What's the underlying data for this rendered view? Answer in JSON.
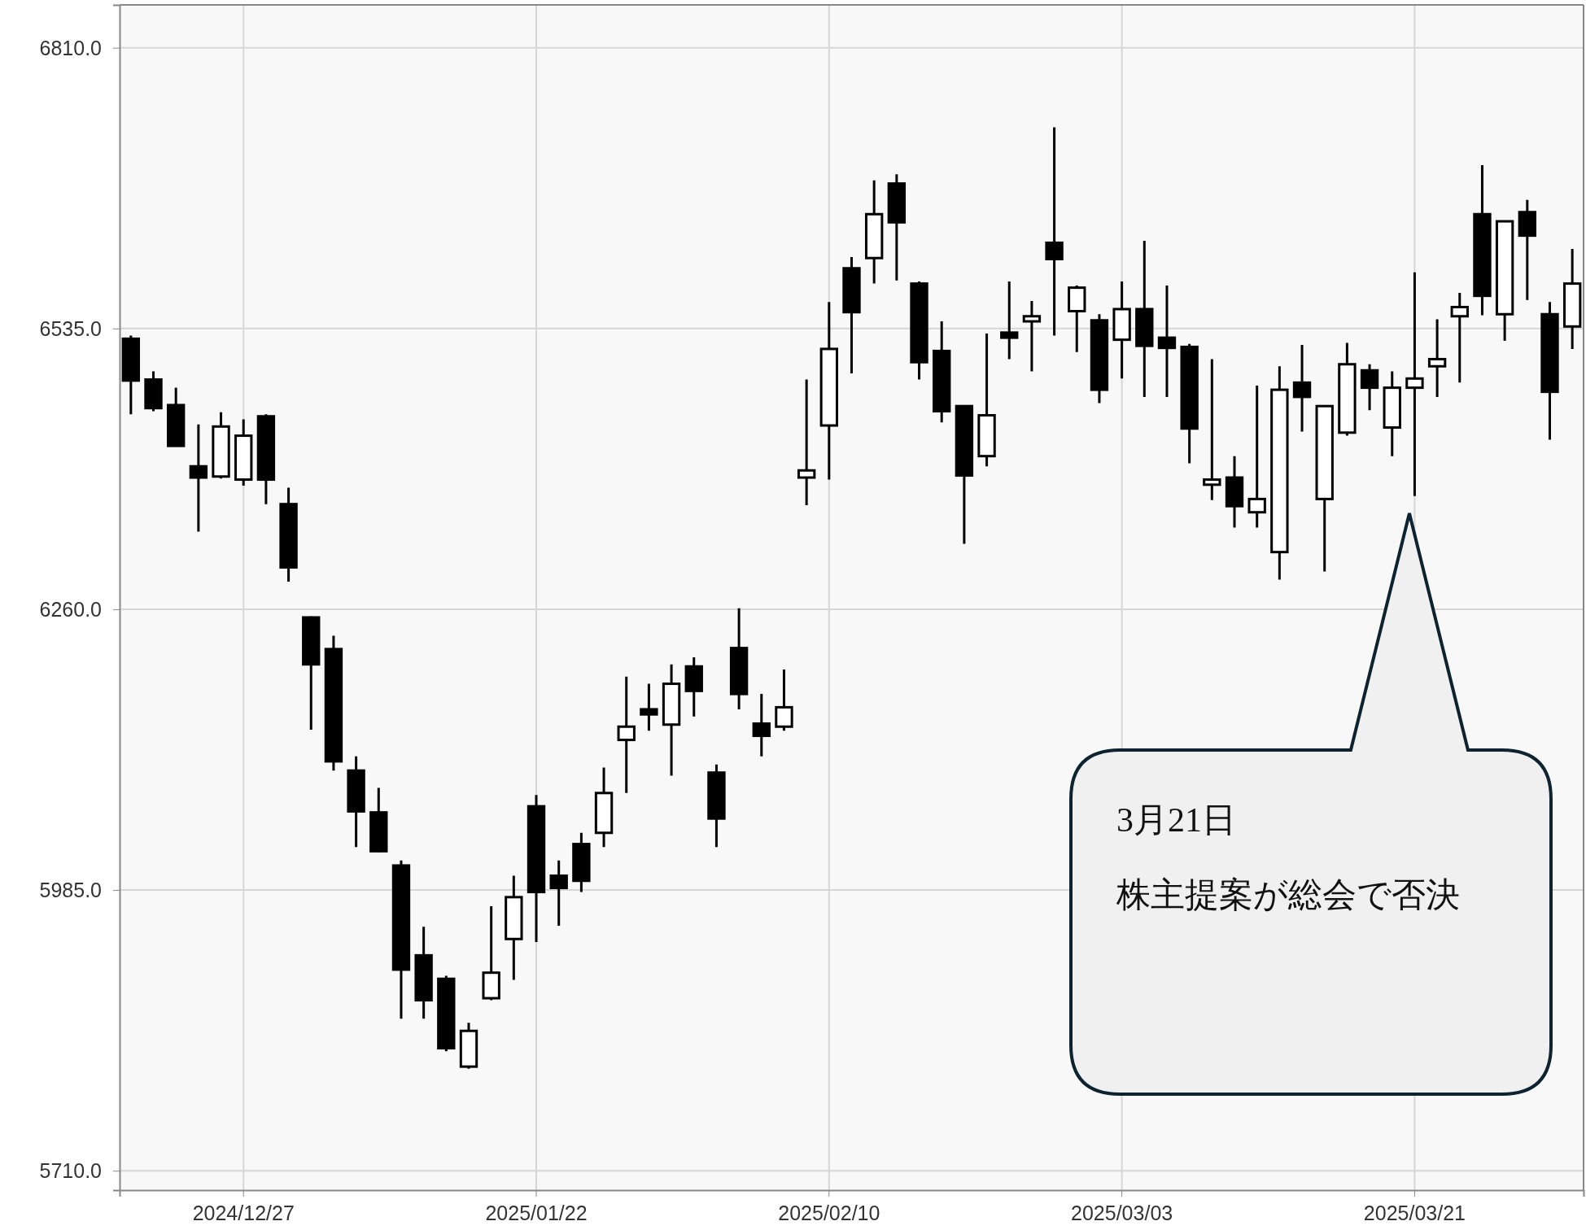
{
  "chart_data": {
    "type": "candlestick",
    "categories": [
      null,
      null,
      null,
      null,
      null,
      "2024/12/27",
      null,
      null,
      null,
      null,
      null,
      null,
      null,
      null,
      null,
      null,
      null,
      null,
      "2025/01/22",
      null,
      null,
      null,
      null,
      null,
      null,
      null,
      null,
      null,
      null,
      null,
      null,
      "2025/02/10",
      null,
      null,
      null,
      null,
      null,
      null,
      null,
      null,
      null,
      null,
      null,
      null,
      "2025/03/03",
      null,
      null,
      null,
      null,
      null,
      null,
      null,
      null,
      null,
      null,
      null,
      null,
      "2025/03/21",
      null,
      null,
      null,
      null,
      null,
      null,
      null
    ],
    "ohlc": [
      [
        6525,
        6528,
        6451,
        6484
      ],
      [
        6485,
        6493,
        6454,
        6457
      ],
      [
        6460,
        6477,
        6420,
        6420
      ],
      [
        6400,
        6441,
        6336,
        6389
      ],
      [
        6390,
        6453,
        6388,
        6439
      ],
      [
        6387,
        6446,
        6381,
        6430
      ],
      [
        6449,
        6451,
        6363,
        6387
      ],
      [
        6363,
        6379,
        6287,
        6301
      ],
      [
        6252,
        6253,
        6142,
        6206
      ],
      [
        6221,
        6234,
        6102,
        6111
      ],
      [
        6102,
        6116,
        6027,
        6062
      ],
      [
        6061,
        6085,
        6022,
        6023
      ],
      [
        6009,
        6014,
        5859,
        5907
      ],
      [
        5921,
        5949,
        5859,
        5877
      ],
      [
        5898,
        5901,
        5827,
        5830
      ],
      [
        5812,
        5855,
        5810,
        5847
      ],
      [
        5879,
        5969,
        5877,
        5904
      ],
      [
        5937,
        5999,
        5897,
        5978
      ],
      [
        6067,
        6078,
        5934,
        5983
      ],
      [
        5999,
        6014,
        5950,
        5987
      ],
      [
        6030,
        6041,
        5983,
        5994
      ],
      [
        6041,
        6105,
        6027,
        6080
      ],
      [
        6132,
        6194,
        6080,
        6145
      ],
      [
        6162,
        6187,
        6141,
        6157
      ],
      [
        6147,
        6206,
        6097,
        6187
      ],
      [
        6204,
        6213,
        6155,
        6180
      ],
      [
        6100,
        6108,
        6027,
        6055
      ],
      [
        6222,
        6261,
        6162,
        6177
      ],
      [
        6148,
        6177,
        6116,
        6136
      ],
      [
        6145,
        6201,
        6141,
        6164
      ],
      [
        6389,
        6485,
        6362,
        6396
      ],
      [
        6440,
        6561,
        6387,
        6515
      ],
      [
        6594,
        6605,
        6491,
        6551
      ],
      [
        6604,
        6680,
        6579,
        6647
      ],
      [
        6677,
        6686,
        6582,
        6639
      ],
      [
        6579,
        6581,
        6485,
        6502
      ],
      [
        6513,
        6542,
        6443,
        6454
      ],
      [
        6459,
        6460,
        6324,
        6391
      ],
      [
        6410,
        6530,
        6400,
        6450
      ],
      [
        6531,
        6581,
        6505,
        6526
      ],
      [
        6542,
        6562,
        6493,
        6547
      ],
      [
        6619,
        6732,
        6528,
        6603
      ],
      [
        6552,
        6577,
        6512,
        6575
      ],
      [
        6543,
        6549,
        6462,
        6475
      ],
      [
        6524,
        6581,
        6486,
        6554
      ],
      [
        6554,
        6621,
        6468,
        6518
      ],
      [
        6526,
        6577,
        6468,
        6516
      ],
      [
        6517,
        6520,
        6403,
        6437
      ],
      [
        6382,
        6505,
        6367,
        6387
      ],
      [
        6389,
        6410,
        6340,
        6361
      ],
      [
        6355,
        6479,
        6340,
        6368
      ],
      [
        6316,
        6498,
        6289,
        6475
      ],
      [
        6482,
        6519,
        6434,
        6468
      ],
      [
        6368,
        6459,
        6297,
        6459
      ],
      [
        6433,
        6521,
        6430,
        6500
      ],
      [
        6494,
        6500,
        6455,
        6477
      ],
      [
        6438,
        6493,
        6410,
        6477
      ],
      [
        6477,
        6590,
        6371,
        6486
      ],
      [
        6498,
        6544,
        6468,
        6505
      ],
      [
        6547,
        6570,
        6482,
        6556
      ],
      [
        6647,
        6695,
        6548,
        6567
      ],
      [
        6549,
        6640,
        6523,
        6640
      ],
      [
        6649,
        6661,
        6563,
        6626
      ],
      [
        6549,
        6561,
        6426,
        6473
      ],
      [
        6537,
        6613,
        6515,
        6579
      ]
    ],
    "ylim": [
      5691,
      6852
    ],
    "yticks": [
      {
        "value": 5710,
        "label": "5710.0"
      },
      {
        "value": 5985,
        "label": "5985.0"
      },
      {
        "value": 6260,
        "label": "6260.0"
      },
      {
        "value": 6535,
        "label": "6535.0"
      },
      {
        "value": 6810,
        "label": "6810.0"
      }
    ],
    "grid": true,
    "annotations": [
      "3月21日",
      "株主提案が総会で否決"
    ]
  }
}
